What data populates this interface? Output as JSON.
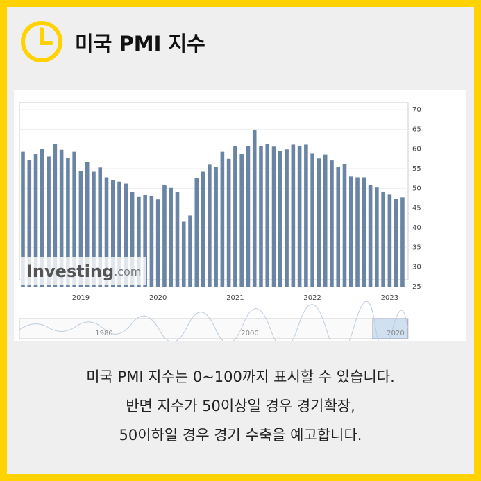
{
  "header": {
    "title": "미국 PMI 지수"
  },
  "chart_data": {
    "type": "bar",
    "categories": [
      null,
      null,
      null,
      null,
      null,
      null,
      null,
      null,
      null,
      "2019",
      null,
      null,
      null,
      null,
      null,
      null,
      null,
      null,
      null,
      null,
      null,
      "2020",
      null,
      null,
      null,
      null,
      null,
      null,
      null,
      null,
      null,
      null,
      null,
      "2021",
      null,
      null,
      null,
      null,
      null,
      null,
      null,
      null,
      null,
      null,
      null,
      "2022",
      null,
      null,
      null,
      null,
      null,
      null,
      null,
      null,
      null,
      null,
      null,
      "2023",
      null,
      null
    ],
    "values": [
      59.3,
      57.3,
      58.7,
      60.0,
      58.1,
      61.3,
      59.8,
      57.7,
      59.3,
      54.3,
      56.6,
      54.2,
      55.3,
      52.8,
      52.1,
      51.7,
      51.2,
      49.1,
      47.8,
      48.3,
      48.1,
      47.2,
      50.9,
      50.1,
      49.1,
      41.5,
      43.1,
      52.6,
      54.2,
      56.0,
      55.4,
      59.3,
      57.5,
      60.7,
      58.7,
      60.8,
      64.7,
      60.7,
      61.2,
      60.6,
      59.5,
      59.9,
      61.1,
      60.8,
      61.1,
      58.8,
      57.6,
      58.6,
      57.1,
      55.4,
      56.1,
      53.0,
      52.8,
      52.8,
      50.9,
      50.2,
      49.0,
      48.4,
      47.4,
      47.7
    ],
    "color": "#6a84a6",
    "ylim": [
      25,
      70
    ],
    "yticks": [
      25,
      30,
      35,
      40,
      45,
      50,
      55,
      60,
      65,
      70
    ],
    "y_axis_side": "right",
    "grid": true,
    "watermark": [
      "Investing",
      ".com"
    ],
    "navigator_labels": [
      "1980",
      "2000",
      "2020"
    ]
  },
  "body": {
    "lines": [
      "미국 PMI 지수는 0~100까지 표시할 수 있습니다.",
      "반면 지수가 50이상일 경우 경기확장,",
      "50이하일 경우 경기 수축을 예고합니다."
    ]
  }
}
